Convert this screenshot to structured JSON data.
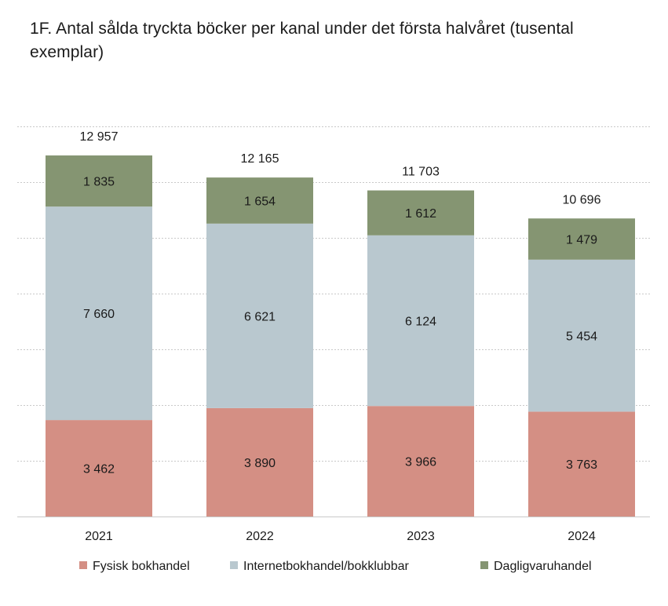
{
  "chart_data": {
    "type": "bar",
    "stacked": true,
    "title": "1F. Antal sålda tryckta böcker per kanal under det första halvåret (tusental exemplar)",
    "categories": [
      "2021",
      "2022",
      "2023",
      "2024"
    ],
    "series": [
      {
        "name": "Fysisk bokhandel",
        "values": [
          3462,
          3890,
          3966,
          3763
        ],
        "color": "#d48f84"
      },
      {
        "name": "Internetbokhandel/bokklubbar",
        "values": [
          7660,
          6621,
          6124,
          5454
        ],
        "color": "#b9c8cf"
      },
      {
        "name": "Dagligvaruhandel",
        "values": [
          1835,
          1654,
          1612,
          1479
        ],
        "color": "#859572"
      }
    ],
    "value_labels": [
      [
        "3 462",
        "3 890",
        "3 966",
        "3 763"
      ],
      [
        "7 660",
        "6 621",
        "6 124",
        "5 454"
      ],
      [
        "1 835",
        "1 654",
        "1 612",
        "1 479"
      ]
    ],
    "totals": [
      12957,
      12165,
      11703,
      10696
    ],
    "total_labels": [
      "12 957",
      "12 165",
      "11 703",
      "10 696"
    ],
    "ylim": [
      0,
      14000
    ],
    "y_grid_step": 2000,
    "grid": true,
    "legend_position": "bottom"
  }
}
